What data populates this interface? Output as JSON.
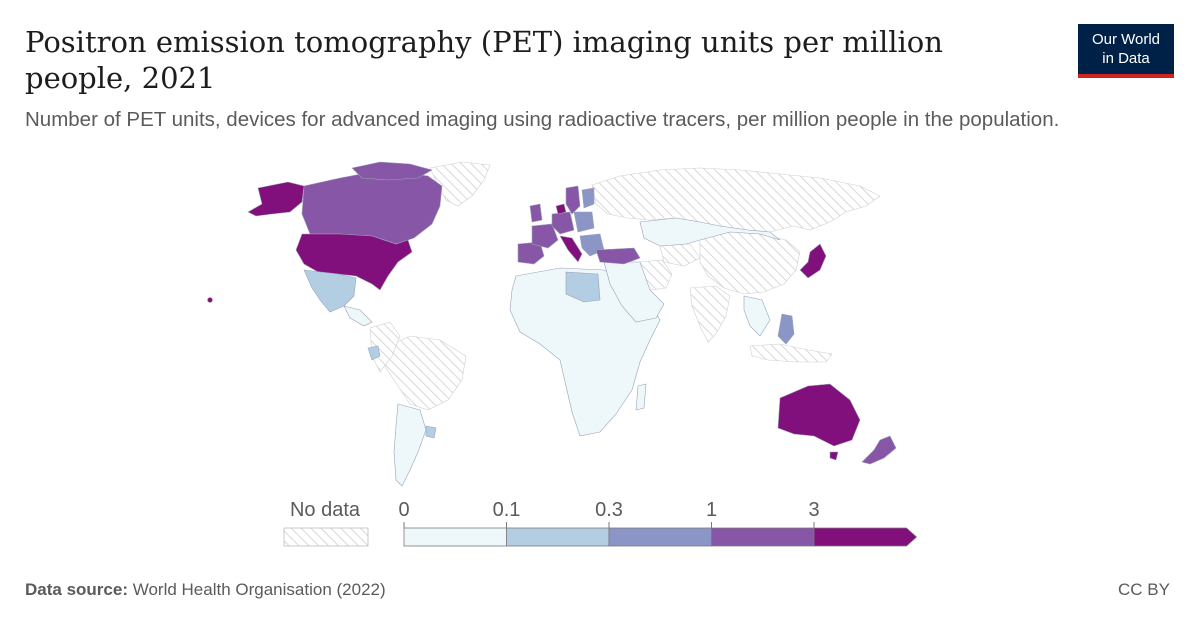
{
  "header": {
    "title": "Positron emission tomography (PET) imaging units per million people, 2021",
    "subtitle": "Number of PET units, devices for advanced imaging using radioactive tracers, per million people in the population."
  },
  "logo": {
    "line1": "Our World",
    "line2": "in Data"
  },
  "legend": {
    "no_data_label": "No data",
    "ticks": [
      "0",
      "0.1",
      "0.3",
      "1",
      "3"
    ],
    "bins": [
      {
        "range": "0–0.1",
        "color": "#eef7fa"
      },
      {
        "range": "0.1–0.3",
        "color": "#b3cde3"
      },
      {
        "range": "0.3–1",
        "color": "#8c96c6"
      },
      {
        "range": "1–3",
        "color": "#8856a7"
      },
      {
        "range": "3+",
        "color": "#810f7c"
      }
    ]
  },
  "chart_data": {
    "type": "choropleth",
    "title": "Positron emission tomography (PET) imaging units per million people, 2021",
    "bins": [
      "0–0.1",
      "0.1–0.3",
      "0.3–1",
      "1–3",
      "3+"
    ],
    "regions": [
      {
        "name": "United States",
        "bin": "3+"
      },
      {
        "name": "Alaska",
        "bin": "3+"
      },
      {
        "name": "Japan",
        "bin": "3+"
      },
      {
        "name": "Australia",
        "bin": "3+"
      },
      {
        "name": "Italy",
        "bin": "3+"
      },
      {
        "name": "Denmark",
        "bin": "3+"
      },
      {
        "name": "Canada",
        "bin": "1–3"
      },
      {
        "name": "France",
        "bin": "1–3"
      },
      {
        "name": "Spain",
        "bin": "1–3"
      },
      {
        "name": "Germany",
        "bin": "1–3"
      },
      {
        "name": "Turkey",
        "bin": "1–3"
      },
      {
        "name": "New Zealand",
        "bin": "1–3"
      },
      {
        "name": "Sweden",
        "bin": "1–3"
      },
      {
        "name": "Finland",
        "bin": "0.3–1"
      },
      {
        "name": "Poland",
        "bin": "0.3–1"
      },
      {
        "name": "Philippines",
        "bin": "0.3–1"
      },
      {
        "name": "Greece",
        "bin": "0.3–1"
      },
      {
        "name": "Mexico",
        "bin": "0.1–0.3"
      },
      {
        "name": "Libya",
        "bin": "0.1–0.3"
      },
      {
        "name": "Uruguay",
        "bin": "0.1–0.3"
      },
      {
        "name": "Ecuador",
        "bin": "0.1–0.3"
      },
      {
        "name": "Kazakhstan",
        "bin": "0–0.1"
      },
      {
        "name": "Mongolia",
        "bin": "0–0.1"
      },
      {
        "name": "Saudi Arabia",
        "bin": "0–0.1"
      },
      {
        "name": "Egypt",
        "bin": "0–0.1"
      },
      {
        "name": "Sub-Saharan Africa",
        "bin": "0–0.1"
      },
      {
        "name": "Argentina",
        "bin": "0–0.1"
      },
      {
        "name": "Thailand",
        "bin": "0–0.1"
      }
    ],
    "no_data_regions": [
      "Russia",
      "China",
      "India",
      "Brazil",
      "Greenland",
      "Iran",
      "Peru",
      "Indonesia"
    ]
  },
  "footer": {
    "source_label": "Data source:",
    "source_text": "World Health Organisation (2022)",
    "license": "CC BY"
  }
}
